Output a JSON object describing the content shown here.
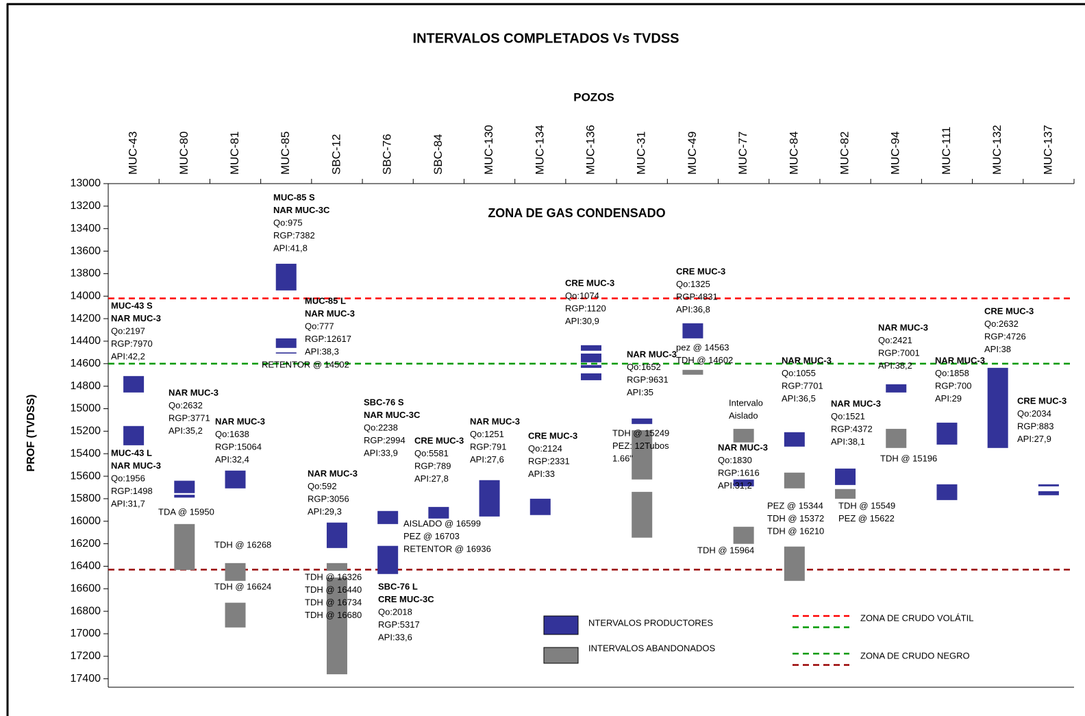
{
  "chart_data": {
    "type": "interval",
    "title": "INTERVALOS COMPLETADOS Vs TVDSS",
    "x_label": "POZOS",
    "y_label": "PROF (TVDSS)",
    "zone_label": "ZONA DE GAS CONDENSADO",
    "categories": [
      "MUC-43",
      "MUC-80",
      "MUC-81",
      "MUC-85",
      "SBC-12",
      "SBC-76",
      "SBC-84",
      "MUC-130",
      "MUC-134",
      "MUC-136",
      "MUC-31",
      "MUC-49",
      "MUC-77",
      "MUC-84",
      "MUC-82",
      "MUC-94",
      "MUC-111",
      "MUC-132",
      "MUC-137"
    ],
    "ylim": [
      13000,
      17475
    ],
    "y_inverted": true,
    "yticks": [
      13000,
      13200,
      13400,
      13600,
      13800,
      14000,
      14200,
      14400,
      14600,
      14800,
      15000,
      15200,
      15400,
      15600,
      15800,
      16000,
      16200,
      16400,
      16600,
      16800,
      17000,
      17200,
      17400
    ],
    "reference_lines": [
      {
        "value": 14020,
        "color": "#ff0000"
      },
      {
        "value": 14600,
        "color": "#009900"
      },
      {
        "value": 16430,
        "color": "#990000"
      }
    ],
    "series": [
      {
        "name": "NTERVALOS PRODUCTORES",
        "color": "#333399",
        "intervals": [
          {
            "well": "MUC-43",
            "top": 14710,
            "bottom": 14856
          },
          {
            "well": "MUC-43",
            "top": 15154,
            "bottom": 15325
          },
          {
            "well": "MUC-80",
            "top": 15640,
            "bottom": 15750
          },
          {
            "well": "MUC-80",
            "top": 15765,
            "bottom": 15790
          },
          {
            "well": "MUC-81",
            "top": 15550,
            "bottom": 15708
          },
          {
            "well": "MUC-85",
            "top": 13712,
            "bottom": 13949
          },
          {
            "well": "MUC-85",
            "top": 14375,
            "bottom": 14460
          },
          {
            "well": "MUC-85",
            "top": 14500,
            "bottom": 14510
          },
          {
            "well": "SBC-12",
            "top": 16012,
            "bottom": 16238
          },
          {
            "well": "SBC-76",
            "top": 15909,
            "bottom": 16025
          },
          {
            "well": "SBC-76",
            "top": 16219,
            "bottom": 16469
          },
          {
            "well": "SBC-84",
            "top": 15873,
            "bottom": 15976
          },
          {
            "well": "MUC-130",
            "top": 15635,
            "bottom": 15958
          },
          {
            "well": "MUC-134",
            "top": 15800,
            "bottom": 15945
          },
          {
            "well": "MUC-136",
            "top": 14436,
            "bottom": 14485
          },
          {
            "well": "MUC-136",
            "top": 14510,
            "bottom": 14588
          },
          {
            "well": "MUC-136",
            "top": 14612,
            "bottom": 14637
          },
          {
            "well": "MUC-136",
            "top": 14686,
            "bottom": 14747
          },
          {
            "well": "MUC-31",
            "top": 15087,
            "bottom": 15136
          },
          {
            "well": "MUC-49",
            "top": 14241,
            "bottom": 14375
          },
          {
            "well": "MUC-77",
            "top": 15629,
            "bottom": 15690
          },
          {
            "well": "MUC-84",
            "top": 15209,
            "bottom": 15337
          },
          {
            "well": "MUC-82",
            "top": 15532,
            "bottom": 15678
          },
          {
            "well": "MUC-94",
            "top": 14783,
            "bottom": 14856
          },
          {
            "well": "MUC-111",
            "top": 15124,
            "bottom": 15319
          },
          {
            "well": "MUC-111",
            "top": 15672,
            "bottom": 15812
          },
          {
            "well": "MUC-132",
            "top": 14637,
            "bottom": 15349
          },
          {
            "well": "MUC-137",
            "top": 15672,
            "bottom": 15690
          },
          {
            "well": "MUC-137",
            "top": 15733,
            "bottom": 15769
          }
        ]
      },
      {
        "name": "INTERVALOS ABANDONADOS",
        "color": "#808080",
        "intervals": [
          {
            "well": "MUC-80",
            "top": 16025,
            "bottom": 16433
          },
          {
            "well": "MUC-81",
            "top": 16372,
            "bottom": 16530
          },
          {
            "well": "MUC-81",
            "top": 16724,
            "bottom": 16944
          },
          {
            "well": "SBC-12",
            "top": 16372,
            "bottom": 16440
          },
          {
            "well": "SBC-12",
            "top": 16500,
            "bottom": 17360
          },
          {
            "well": "MUC-31",
            "top": 15191,
            "bottom": 15629
          },
          {
            "well": "MUC-31",
            "top": 15739,
            "bottom": 16146
          },
          {
            "well": "MUC-49",
            "top": 14655,
            "bottom": 14698
          },
          {
            "well": "MUC-77",
            "top": 15179,
            "bottom": 15300
          },
          {
            "well": "MUC-77",
            "top": 16049,
            "bottom": 16201
          },
          {
            "well": "MUC-84",
            "top": 15568,
            "bottom": 15708
          },
          {
            "well": "MUC-84",
            "top": 16225,
            "bottom": 16530
          },
          {
            "well": "MUC-82",
            "top": 15714,
            "bottom": 15800
          },
          {
            "well": "MUC-94",
            "top": 15179,
            "bottom": 15349
          }
        ]
      }
    ],
    "zones": [
      {
        "name": "ZONA DE CRUDO VOLÁTIL",
        "colors": [
          "#ff0000",
          "#009900"
        ]
      },
      {
        "name": "ZONA DE CRUDO NEGRO",
        "colors": [
          "#009900",
          "#990000"
        ]
      }
    ],
    "annotations": [
      {
        "bold": [
          "MUC-43 S",
          "NAR MUC-3"
        ],
        "lines": [
          "Qo:2197",
          "RGP:7970",
          "API:42,2"
        ]
      },
      {
        "bold": [
          "MUC-43 L",
          "NAR MUC-3"
        ],
        "lines": [
          "Qo:1956",
          "RGP:1498",
          "API:31,7"
        ]
      },
      {
        "bold": [
          "NAR MUC-3"
        ],
        "lines": [
          "Qo:2632",
          "RGP:3771",
          "API:35,2"
        ]
      },
      {
        "bold": [],
        "lines": [
          "TDA @ 15950"
        ]
      },
      {
        "bold": [
          "NAR MUC-3"
        ],
        "lines": [
          "Qo:1638",
          "RGP:15064",
          "API:32,4"
        ]
      },
      {
        "bold": [],
        "lines": [
          "TDH @ 16268"
        ]
      },
      {
        "bold": [],
        "lines": [
          "TDH @ 16624"
        ]
      },
      {
        "bold": [
          "MUC-85 S",
          "NAR MUC-3C"
        ],
        "lines": [
          "Qo:975",
          "RGP:7382",
          "API:41,8"
        ]
      },
      {
        "bold": [
          "MUC-85 L",
          "NAR MUC-3"
        ],
        "lines": [
          "Qo:777",
          "RGP:12617",
          "API:38,3"
        ]
      },
      {
        "bold": [],
        "lines": [
          "RETENTOR @ 14502"
        ]
      },
      {
        "bold": [
          "NAR MUC-3"
        ],
        "lines": [
          "Qo:592",
          "RGP:3056",
          "API:29,3"
        ]
      },
      {
        "bold": [],
        "lines": [
          "TDH @ 16326",
          "TDH @ 16440",
          "TDH @ 16734",
          "TDH @ 16680"
        ]
      },
      {
        "bold": [
          "SBC-76 S",
          "NAR MUC-3C"
        ],
        "lines": [
          "Qo:2238",
          "RGP:2994",
          "API:33,9"
        ]
      },
      {
        "bold": [
          "SBC-76 L",
          "CRE MUC-3C"
        ],
        "lines": [
          "Qo:2018",
          "RGP:5317",
          "API:33,6"
        ]
      },
      {
        "bold": [
          "CRE MUC-3"
        ],
        "lines": [
          "Qo:5581",
          "RGP:789",
          "API:27,8"
        ]
      },
      {
        "bold": [],
        "lines": [
          "AISLADO @ 16599",
          "PEZ @ 16703",
          "RETENTOR @ 16936"
        ]
      },
      {
        "bold": [
          "NAR MUC-3"
        ],
        "lines": [
          "Qo:1251",
          "RGP:791",
          "API:27,6"
        ]
      },
      {
        "bold": [
          "CRE MUC-3"
        ],
        "lines": [
          "Qo:2124",
          "RGP:2331",
          "API:33"
        ]
      },
      {
        "bold": [
          "CRE MUC-3"
        ],
        "lines": [
          "Qo:1074",
          "RGP:1120",
          "API:30,9"
        ]
      },
      {
        "bold": [
          "NAR MUC-3"
        ],
        "lines": [
          "Qo:1652",
          "RGP:9631",
          "API:35"
        ]
      },
      {
        "bold": [],
        "lines": [
          "TDH @ 15249",
          "PEZ: 12Tubos",
          "1.66\""
        ]
      },
      {
        "bold": [
          "CRE MUC-3"
        ],
        "lines": [
          "Qo:1325",
          "RGP:4831",
          "API:36,8"
        ]
      },
      {
        "bold": [],
        "lines": [
          "pez @ 14563",
          "TDH @ 14602"
        ]
      },
      {
        "bold": [],
        "lines": [
          "Intervalo",
          "Aislado"
        ]
      },
      {
        "bold": [
          "NAR MUC-3"
        ],
        "lines": [
          "Qo:1830",
          "RGP:1616",
          "API:31,2"
        ]
      },
      {
        "bold": [],
        "lines": [
          "TDH @ 15964"
        ]
      },
      {
        "bold": [
          "NAR MUC-3"
        ],
        "lines": [
          "Qo:1055",
          "RGP:7701",
          "API:36,5"
        ]
      },
      {
        "bold": [],
        "lines": [
          "PEZ @ 15344",
          "TDH @ 15372",
          "TDH @ 16210"
        ]
      },
      {
        "bold": [
          "NAR MUC-3"
        ],
        "lines": [
          "Qo:1521",
          "RGP:4372",
          "API:38,1"
        ]
      },
      {
        "bold": [],
        "lines": [
          "TDH @ 15549",
          "PEZ @ 15622"
        ]
      },
      {
        "bold": [
          "NAR MUC-3"
        ],
        "lines": [
          "Qo:2421",
          "RGP:7001",
          "API:38,2"
        ]
      },
      {
        "bold": [],
        "lines": [
          "TDH @ 15196"
        ]
      },
      {
        "bold": [
          "NAR MUC-3"
        ],
        "lines": [
          "Qo:1858",
          "RGP:700",
          "API:29"
        ]
      },
      {
        "bold": [
          "CRE MUC-3"
        ],
        "lines": [
          "Qo:2632",
          "RGP:4726",
          "API:38"
        ]
      },
      {
        "bold": [
          "CRE MUC-3"
        ],
        "lines": [
          "Qo:2034",
          "RGP:883",
          "API:27,9"
        ]
      }
    ]
  }
}
